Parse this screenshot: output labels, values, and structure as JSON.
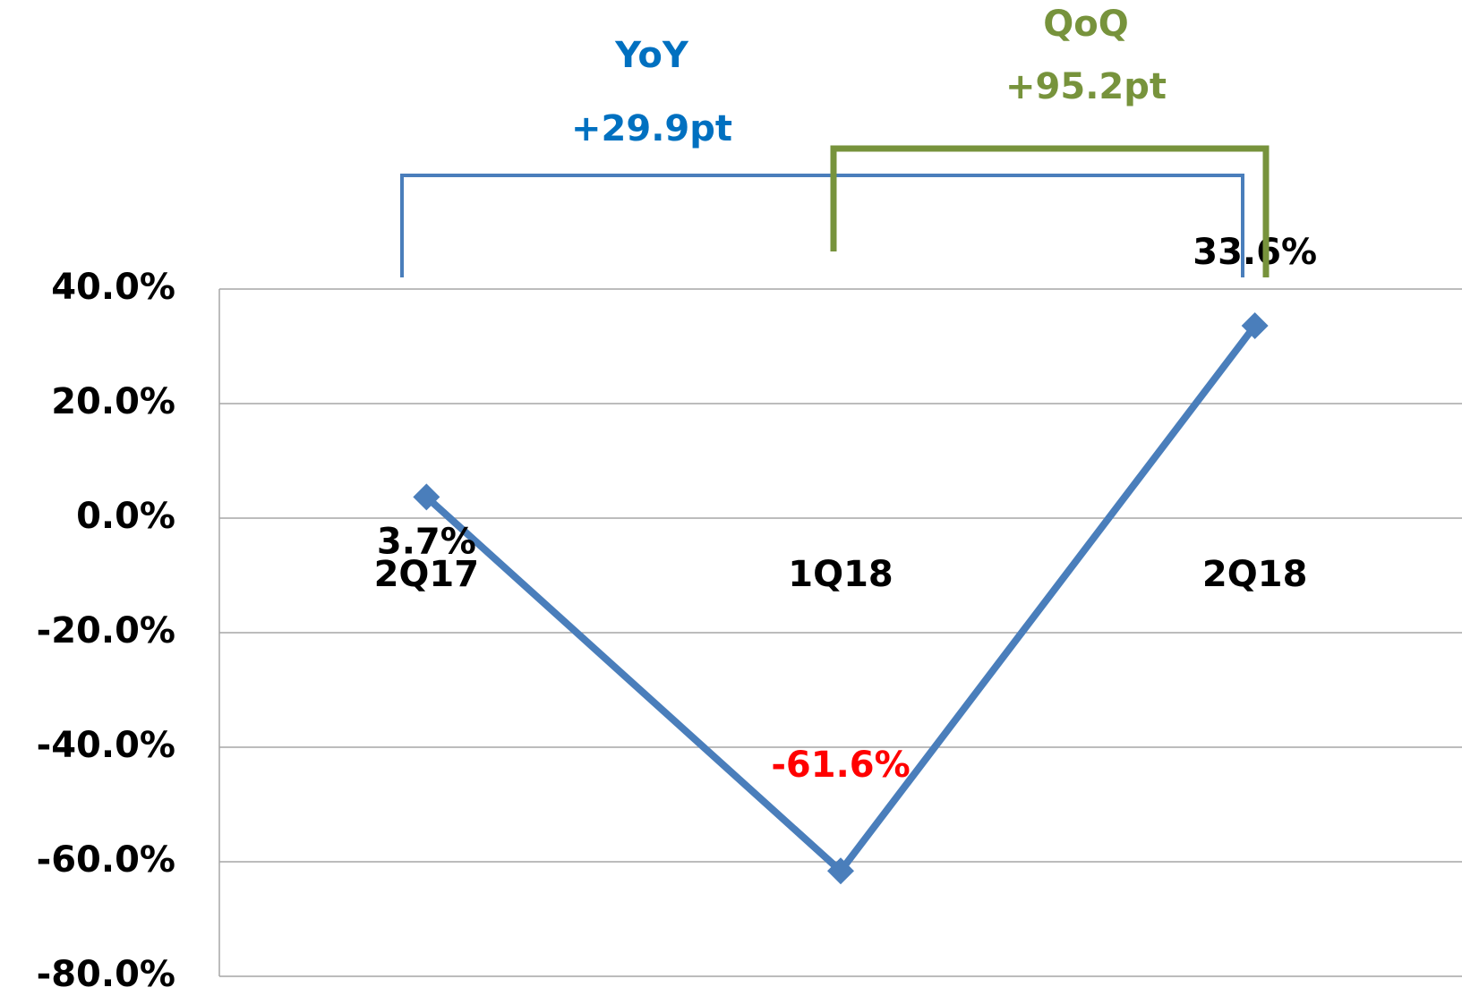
{
  "chart_data": {
    "type": "line",
    "categories": [
      "2Q17",
      "1Q18",
      "2Q18"
    ],
    "series": [
      {
        "name": null,
        "color": "#4a7ebb",
        "values": [
          3.7,
          -61.6,
          33.6
        ],
        "value_labels": [
          "3.7%",
          "-61.6%",
          "33.6%"
        ],
        "value_label_colors": [
          "#000000",
          "#ff0000",
          "#000000"
        ]
      }
    ],
    "ylim": [
      -80,
      40
    ],
    "yticks": [
      {
        "value": -80,
        "label": "-80.0%"
      },
      {
        "value": -60,
        "label": "-60.0%"
      },
      {
        "value": -40,
        "label": "-40.0%"
      },
      {
        "value": -20,
        "label": "-20.0%"
      },
      {
        "value": 0,
        "label": "0.0%"
      },
      {
        "value": 20,
        "label": "20.0%"
      },
      {
        "value": 40,
        "label": "40.0%"
      }
    ],
    "grid": true,
    "annotations": [
      {
        "label": "YoY",
        "value": 29.9,
        "value_label": "+29.9pt",
        "color": "#0070c0",
        "bracket_color": "#4a7ebb"
      },
      {
        "label": "QoQ",
        "value": 95.2,
        "value_label": "+95.2pt",
        "color": "#77933c",
        "bracket_color": "#77933c"
      }
    ]
  }
}
